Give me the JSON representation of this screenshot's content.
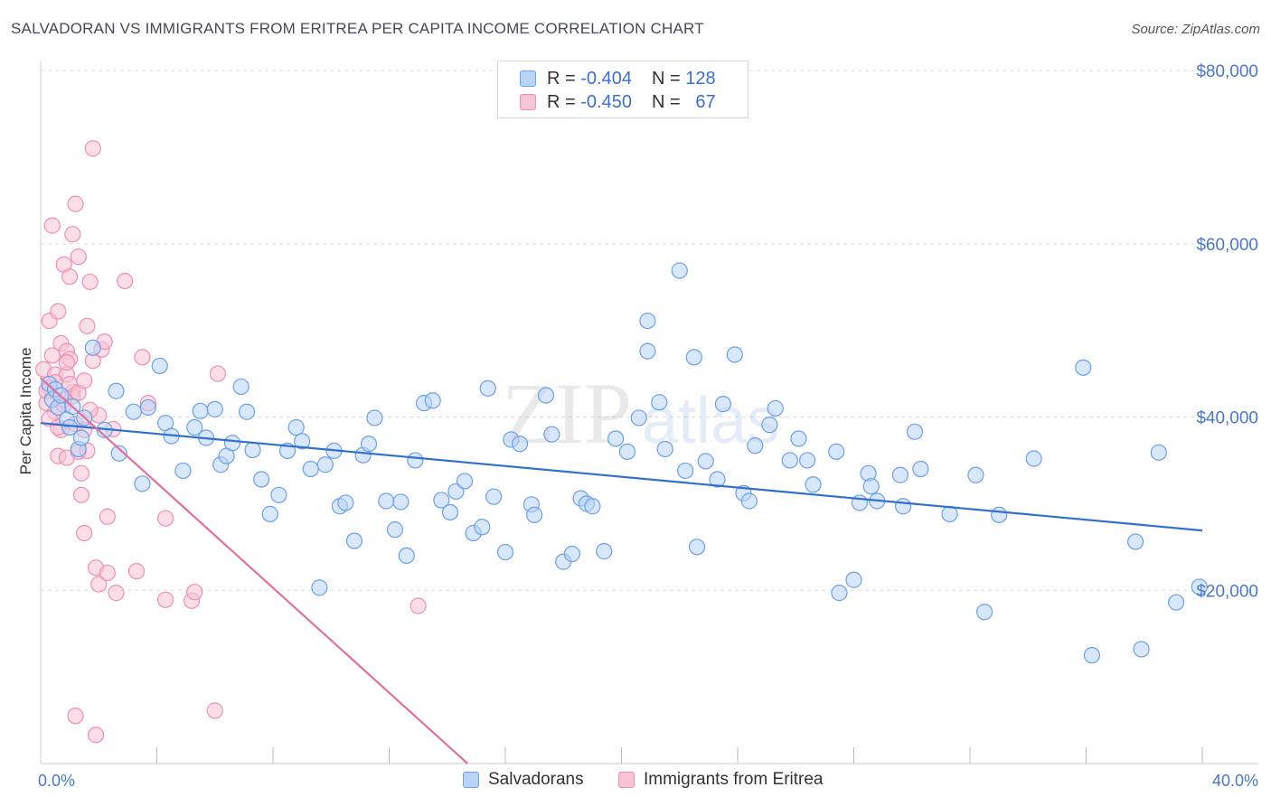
{
  "header": {
    "title": "SALVADORAN VS IMMIGRANTS FROM ERITREA PER CAPITA INCOME CORRELATION CHART",
    "source": "Source: ZipAtlas.com"
  },
  "watermark": {
    "zip": "ZIP",
    "atlas": "atlas"
  },
  "colors": {
    "blue": "#6aa0e8",
    "blue_fill": "#b9d3f5",
    "blue_line": "#2f6fce",
    "pink": "#ef8fb0",
    "pink_fill": "#f7c3d5",
    "pink_line": "#e0709a",
    "axis_text": "#4a78c8",
    "grid": "#dddddd"
  },
  "legend": {
    "rows": [
      {
        "r_label": "R =",
        "r_value": "-0.404",
        "n_label": "N =",
        "n_value": "128"
      },
      {
        "r_label": "R =",
        "r_value": "-0.450",
        "n_label": "N =",
        "n_value": "67"
      }
    ],
    "series_labels": [
      "Salvadorans",
      "Immigrants from Eritrea"
    ]
  },
  "chart_data": {
    "type": "scatter",
    "title": "SALVADORAN VS IMMIGRANTS FROM ERITREA PER CAPITA INCOME CORRELATION CHART",
    "xlabel": "",
    "ylabel": "Per Capita Income",
    "x_unit": "percent",
    "xlim": [
      0,
      40
    ],
    "ylim": [
      0,
      80000
    ],
    "x_ticks": [
      "0.0%",
      "40.0%"
    ],
    "y_ticks": [
      {
        "value": 20000,
        "label": "$20,000"
      },
      {
        "value": 40000,
        "label": "$40,000"
      },
      {
        "value": 60000,
        "label": "$60,000"
      },
      {
        "value": 80000,
        "label": "$80,000"
      }
    ],
    "grid": "horizontal dashed",
    "legend_position": "top-center",
    "series": [
      {
        "name": "Salvadorans",
        "color": "blue",
        "trend": {
          "x": [
            0,
            40
          ],
          "y": [
            39300,
            26900
          ]
        },
        "points": [
          [
            0.3,
            43800
          ],
          [
            0.4,
            42000
          ],
          [
            0.5,
            43200
          ],
          [
            0.6,
            41100
          ],
          [
            0.7,
            42500
          ],
          [
            0.9,
            39700
          ],
          [
            1.0,
            38800
          ],
          [
            1.1,
            41200
          ],
          [
            1.3,
            36300
          ],
          [
            1.4,
            37600
          ],
          [
            1.5,
            39900
          ],
          [
            1.8,
            48000
          ],
          [
            2.2,
            38500
          ],
          [
            2.6,
            43000
          ],
          [
            2.7,
            35800
          ],
          [
            3.2,
            40600
          ],
          [
            3.5,
            32300
          ],
          [
            3.7,
            41100
          ],
          [
            4.1,
            45900
          ],
          [
            4.3,
            39300
          ],
          [
            4.5,
            37800
          ],
          [
            4.9,
            33800
          ],
          [
            5.3,
            38800
          ],
          [
            5.5,
            40700
          ],
          [
            5.7,
            37600
          ],
          [
            6.0,
            40900
          ],
          [
            6.2,
            34500
          ],
          [
            6.4,
            35500
          ],
          [
            6.6,
            37000
          ],
          [
            6.9,
            43500
          ],
          [
            7.1,
            40600
          ],
          [
            7.3,
            36200
          ],
          [
            7.6,
            32800
          ],
          [
            7.9,
            28800
          ],
          [
            8.2,
            31000
          ],
          [
            8.5,
            36100
          ],
          [
            8.8,
            38800
          ],
          [
            9.0,
            37200
          ],
          [
            9.3,
            34000
          ],
          [
            9.6,
            20300
          ],
          [
            9.8,
            34500
          ],
          [
            10.1,
            36100
          ],
          [
            10.3,
            29700
          ],
          [
            10.5,
            30100
          ],
          [
            10.8,
            25700
          ],
          [
            11.1,
            35600
          ],
          [
            11.3,
            36900
          ],
          [
            11.5,
            39900
          ],
          [
            11.9,
            30300
          ],
          [
            12.2,
            27000
          ],
          [
            12.4,
            30200
          ],
          [
            12.6,
            24000
          ],
          [
            12.9,
            35000
          ],
          [
            13.2,
            41600
          ],
          [
            13.5,
            41900
          ],
          [
            13.8,
            30400
          ],
          [
            14.1,
            29000
          ],
          [
            14.3,
            31400
          ],
          [
            14.6,
            32600
          ],
          [
            14.9,
            26600
          ],
          [
            15.2,
            27300
          ],
          [
            15.4,
            43300
          ],
          [
            15.6,
            30800
          ],
          [
            16.0,
            24400
          ],
          [
            16.2,
            37400
          ],
          [
            16.5,
            36900
          ],
          [
            16.9,
            29900
          ],
          [
            17.0,
            28700
          ],
          [
            17.4,
            42500
          ],
          [
            17.6,
            38000
          ],
          [
            18.0,
            23300
          ],
          [
            18.3,
            24200
          ],
          [
            18.6,
            30600
          ],
          [
            18.8,
            30000
          ],
          [
            19.0,
            29700
          ],
          [
            19.4,
            24500
          ],
          [
            19.8,
            37500
          ],
          [
            20.2,
            36000
          ],
          [
            20.6,
            39900
          ],
          [
            20.9,
            51100
          ],
          [
            20.9,
            47600
          ],
          [
            21.3,
            41700
          ],
          [
            21.5,
            36300
          ],
          [
            22.0,
            56900
          ],
          [
            22.2,
            33800
          ],
          [
            22.5,
            46900
          ],
          [
            22.6,
            25000
          ],
          [
            22.9,
            34900
          ],
          [
            23.3,
            32800
          ],
          [
            23.5,
            41500
          ],
          [
            23.9,
            47200
          ],
          [
            24.2,
            31200
          ],
          [
            24.4,
            30300
          ],
          [
            24.6,
            36700
          ],
          [
            25.1,
            39100
          ],
          [
            25.3,
            41000
          ],
          [
            25.8,
            35000
          ],
          [
            26.1,
            37500
          ],
          [
            26.4,
            35000
          ],
          [
            26.6,
            32200
          ],
          [
            27.4,
            36000
          ],
          [
            27.5,
            19700
          ],
          [
            28.0,
            21200
          ],
          [
            28.2,
            30100
          ],
          [
            28.5,
            33500
          ],
          [
            28.6,
            32000
          ],
          [
            28.8,
            30300
          ],
          [
            29.6,
            33300
          ],
          [
            29.7,
            29700
          ],
          [
            30.1,
            38300
          ],
          [
            30.3,
            34000
          ],
          [
            31.3,
            28800
          ],
          [
            32.2,
            33300
          ],
          [
            32.5,
            17500
          ],
          [
            33.0,
            28700
          ],
          [
            34.2,
            35200
          ],
          [
            35.9,
            45700
          ],
          [
            36.2,
            12500
          ],
          [
            37.7,
            25600
          ],
          [
            37.9,
            13200
          ],
          [
            38.5,
            35900
          ],
          [
            39.1,
            18600
          ],
          [
            39.9,
            20400
          ]
        ]
      },
      {
        "name": "Immigrants from Eritrea",
        "color": "pink",
        "trend": {
          "x": [
            0,
            14.7
          ],
          "y": [
            44500,
            0
          ]
        },
        "points": [
          [
            0.1,
            45500
          ],
          [
            0.2,
            41600
          ],
          [
            0.3,
            43400
          ],
          [
            0.3,
            51100
          ],
          [
            0.4,
            62100
          ],
          [
            0.4,
            47100
          ],
          [
            0.5,
            40600
          ],
          [
            0.5,
            44900
          ],
          [
            0.6,
            35500
          ],
          [
            0.6,
            52200
          ],
          [
            0.7,
            38500
          ],
          [
            0.7,
            48500
          ],
          [
            0.8,
            41400
          ],
          [
            0.8,
            57600
          ],
          [
            0.9,
            35300
          ],
          [
            0.9,
            44900
          ],
          [
            0.9,
            47600
          ],
          [
            1.0,
            56200
          ],
          [
            1.0,
            46700
          ],
          [
            1.1,
            42900
          ],
          [
            1.1,
            61100
          ],
          [
            1.1,
            42400
          ],
          [
            1.2,
            64600
          ],
          [
            1.2,
            39200
          ],
          [
            1.3,
            58500
          ],
          [
            1.3,
            36000
          ],
          [
            1.4,
            33500
          ],
          [
            1.4,
            31000
          ],
          [
            1.5,
            38500
          ],
          [
            1.5,
            26600
          ],
          [
            1.6,
            36100
          ],
          [
            1.6,
            50500
          ],
          [
            1.7,
            55600
          ],
          [
            1.8,
            46500
          ],
          [
            1.8,
            71000
          ],
          [
            1.9,
            22600
          ],
          [
            2.0,
            40200
          ],
          [
            2.0,
            20700
          ],
          [
            2.1,
            47800
          ],
          [
            2.2,
            48700
          ],
          [
            2.3,
            28500
          ],
          [
            2.3,
            22000
          ],
          [
            2.5,
            38600
          ],
          [
            2.6,
            19700
          ],
          [
            2.9,
            55700
          ],
          [
            3.3,
            22200
          ],
          [
            3.5,
            46900
          ],
          [
            3.7,
            41600
          ],
          [
            4.3,
            18900
          ],
          [
            4.3,
            28300
          ],
          [
            5.2,
            18800
          ],
          [
            5.3,
            19800
          ],
          [
            6.0,
            6100
          ],
          [
            6.1,
            45000
          ],
          [
            1.2,
            5500
          ],
          [
            1.9,
            3300
          ],
          [
            13.0,
            18200
          ],
          [
            0.5,
            44000
          ],
          [
            0.8,
            42000
          ],
          [
            1.0,
            43800
          ],
          [
            0.3,
            39800
          ],
          [
            0.6,
            38800
          ],
          [
            0.9,
            46300
          ],
          [
            1.3,
            42800
          ],
          [
            1.7,
            40800
          ],
          [
            0.2,
            43000
          ],
          [
            1.5,
            44200
          ]
        ]
      }
    ]
  }
}
